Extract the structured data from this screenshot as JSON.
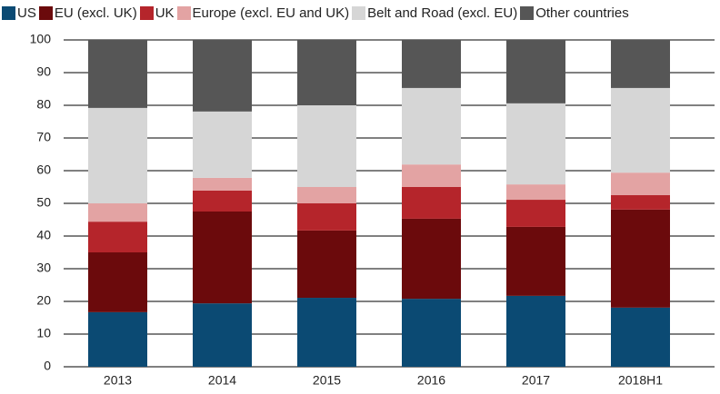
{
  "chart_data": {
    "type": "stacked_bar",
    "categories": [
      "2013",
      "2014",
      "2015",
      "2016",
      "2017",
      "2018H1"
    ],
    "series": [
      {
        "name": "US",
        "color": "#0b4a73",
        "values": [
          16.7,
          19.4,
          21.1,
          20.8,
          21.7,
          18.1
        ]
      },
      {
        "name": "EU (excl. UK)",
        "color": "#6b0a0c",
        "values": [
          18.3,
          28.1,
          20.6,
          24.5,
          21.1,
          30
        ]
      },
      {
        "name": "UK",
        "color": "#b5252b",
        "values": [
          9.4,
          6.4,
          8.3,
          9.7,
          8.3,
          4.4
        ]
      },
      {
        "name": "Europe (excl. EU and UK)",
        "color": "#e3a3a3",
        "values": [
          5.6,
          3.9,
          5,
          6.9,
          4.7,
          6.9
        ]
      },
      {
        "name": "Belt and Road (excl. EU)",
        "color": "#d6d6d6",
        "values": [
          29.2,
          20.3,
          25,
          23.4,
          24.8,
          25.9
        ]
      },
      {
        "name": "Other countries",
        "color": "#565656",
        "values": [
          20.8,
          21.9,
          20,
          14.7,
          19.4,
          14.7
        ]
      }
    ],
    "ylim": [
      0,
      100
    ],
    "yticks": [
      0,
      10,
      20,
      30,
      40,
      50,
      60,
      70,
      80,
      90,
      100
    ],
    "grid": true,
    "legend": "top"
  }
}
